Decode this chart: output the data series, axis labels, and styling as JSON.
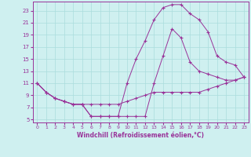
{
  "xlabel": "Windchill (Refroidissement éolien,°C)",
  "bg_color": "#cff0f0",
  "grid_color": "#aadddd",
  "line_color": "#993399",
  "xlim": [
    -0.5,
    23.5
  ],
  "ylim": [
    4.5,
    24.5
  ],
  "yticks": [
    5,
    7,
    9,
    11,
    13,
    15,
    17,
    19,
    21,
    23
  ],
  "xticks": [
    0,
    1,
    2,
    3,
    4,
    5,
    6,
    7,
    8,
    9,
    10,
    11,
    12,
    13,
    14,
    15,
    16,
    17,
    18,
    19,
    20,
    21,
    22,
    23
  ],
  "line1_x": [
    0,
    1,
    2,
    3,
    4,
    5,
    6,
    7,
    8,
    9,
    10,
    11,
    12,
    13,
    14,
    15,
    16,
    17,
    18,
    19,
    20,
    21,
    22,
    23
  ],
  "line1_y": [
    11,
    9.5,
    8.5,
    8.0,
    7.5,
    7.5,
    7.5,
    7.5,
    7.5,
    7.5,
    8.0,
    8.5,
    9.0,
    9.5,
    9.5,
    9.5,
    9.5,
    9.5,
    9.5,
    10.0,
    10.5,
    11.0,
    11.5,
    12.0
  ],
  "line2_x": [
    0,
    1,
    2,
    3,
    4,
    5,
    6,
    7,
    8,
    9,
    10,
    11,
    12,
    13,
    14,
    15,
    16,
    17,
    18,
    19,
    20,
    21,
    22,
    23
  ],
  "line2_y": [
    11,
    9.5,
    8.5,
    8.0,
    7.5,
    7.5,
    5.5,
    5.5,
    5.5,
    5.5,
    5.5,
    5.5,
    5.5,
    11.0,
    15.5,
    20.0,
    18.5,
    14.5,
    13.0,
    12.5,
    12.0,
    11.5,
    11.5,
    12.0
  ],
  "line3_x": [
    0,
    1,
    2,
    3,
    4,
    5,
    6,
    7,
    8,
    9,
    10,
    11,
    12,
    13,
    14,
    15,
    16,
    17,
    18,
    19,
    20,
    21,
    22,
    23
  ],
  "line3_y": [
    11,
    9.5,
    8.5,
    8.0,
    7.5,
    7.5,
    5.5,
    5.5,
    5.5,
    5.5,
    11.0,
    15.0,
    18.0,
    21.5,
    23.5,
    24.0,
    24.0,
    22.5,
    21.5,
    19.5,
    15.5,
    14.5,
    14.0,
    12.0
  ]
}
